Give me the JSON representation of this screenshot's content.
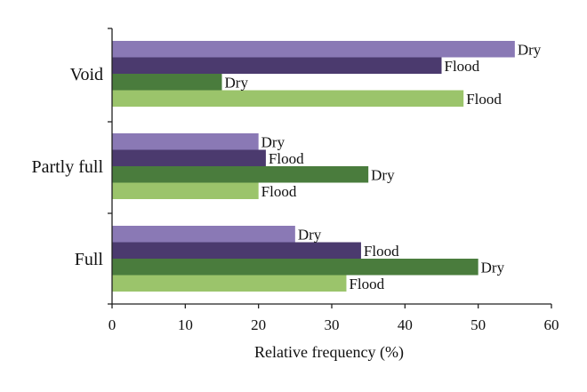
{
  "chart_data": {
    "type": "bar",
    "orientation": "horizontal",
    "title": "",
    "xlabel": "Relative frequency (%)",
    "ylabel": "",
    "xlim": [
      0,
      60
    ],
    "xticks": [
      "0",
      "10",
      "20",
      "30",
      "40",
      "50",
      "60"
    ],
    "grid": false,
    "legend": "none",
    "categories": [
      "Void",
      "Partly full",
      "Full"
    ],
    "series": [
      {
        "label": "Dry",
        "color": "#8a79b5",
        "values": [
          55,
          20,
          25
        ]
      },
      {
        "label": "Flood",
        "color": "#4b3a6e",
        "values": [
          45,
          21,
          34
        ]
      },
      {
        "label": "Dry",
        "color": "#4a7c3d",
        "values": [
          15,
          35,
          50
        ]
      },
      {
        "label": "Flood",
        "color": "#9bc46b",
        "values": [
          48,
          20,
          32
        ]
      }
    ]
  }
}
